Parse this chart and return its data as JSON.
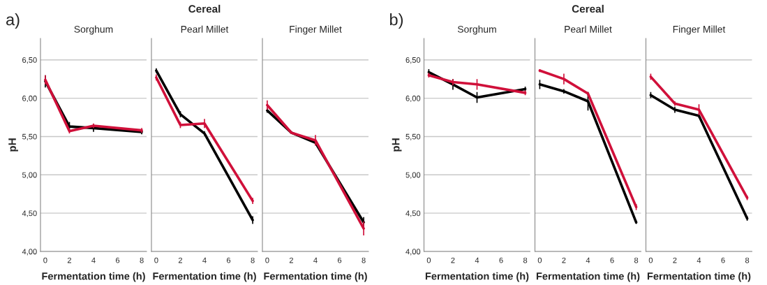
{
  "chart_data": [
    {
      "type": "line",
      "title": "Sorghum",
      "xlabel": "Fermentation time (h)",
      "ylabel": "pH",
      "annotations": [
        "a)",
        "Cereal"
      ],
      "x": [
        0,
        2,
        4,
        8
      ],
      "xlim": [
        -0.4,
        8.4
      ],
      "xticks": [
        0,
        2,
        4,
        6,
        8
      ],
      "ylim": [
        4.0,
        6.78
      ],
      "yticks": [
        {
          "value": 4.0,
          "label": "4,00"
        },
        {
          "value": 4.5,
          "label": "4,50"
        },
        {
          "value": 5.0,
          "label": "5,00"
        },
        {
          "value": 5.5,
          "label": "5,50"
        },
        {
          "value": 6.0,
          "label": "6,00"
        },
        {
          "value": 6.5,
          "label": "6,50"
        }
      ],
      "grid": "y",
      "series": [
        {
          "color": "#000000",
          "values": [
            6.22,
            5.63,
            5.61,
            5.56
          ],
          "errors": [
            0.08,
            0.06,
            0.05,
            0.03
          ]
        },
        {
          "color": "#d0103a",
          "values": [
            6.24,
            5.57,
            5.64,
            5.58
          ],
          "errors": [
            0.06,
            0.03,
            0.03,
            0.03
          ]
        }
      ]
    },
    {
      "type": "line",
      "title": "Pearl Millet",
      "xlabel": "Fermentation time (h)",
      "tick_labels": "x",
      "x": [
        0,
        2,
        4,
        8
      ],
      "xlim": [
        -0.4,
        8.4
      ],
      "xticks": [
        0,
        2,
        4,
        6,
        8
      ],
      "ylim": [
        4.0,
        6.78
      ],
      "yticks": [
        4.0,
        4.5,
        5.0,
        5.5,
        6.0,
        6.5
      ],
      "grid": "y",
      "series": [
        {
          "color": "#000000",
          "values": [
            6.36,
            5.79,
            5.54,
            4.41
          ],
          "errors": [
            0.03,
            0.04,
            0.03,
            0.05
          ]
        },
        {
          "color": "#d0103a",
          "values": [
            6.27,
            5.65,
            5.67,
            4.66
          ],
          "errors": [
            0.04,
            0.04,
            0.06,
            0.04
          ]
        }
      ]
    },
    {
      "type": "line",
      "title": "Finger Millet",
      "xlabel": "Fermentation time (h)",
      "tick_labels": "x",
      "x": [
        0,
        2,
        4,
        8
      ],
      "xlim": [
        -0.4,
        8.4
      ],
      "xticks": [
        0,
        2,
        4,
        6,
        8
      ],
      "ylim": [
        4.0,
        6.78
      ],
      "yticks": [
        4.0,
        4.5,
        5.0,
        5.5,
        6.0,
        6.5
      ],
      "grid": "y",
      "series": [
        {
          "color": "#000000",
          "values": [
            5.84,
            5.55,
            5.42,
            4.38
          ],
          "errors": [
            0.03,
            null,
            0.03,
            0.07
          ]
        },
        {
          "color": "#d0103a",
          "values": [
            5.91,
            5.55,
            5.45,
            4.3
          ],
          "errors": [
            0.06,
            null,
            0.07,
            0.09
          ]
        }
      ]
    },
    {
      "type": "line",
      "title": "Sorghum",
      "xlabel": "Fermentation time (h)",
      "ylabel": "pH",
      "annotations": [
        "b)",
        "Cereal"
      ],
      "x": [
        0,
        2,
        4,
        8
      ],
      "xlim": [
        -0.4,
        8.4
      ],
      "xticks": [
        0,
        2,
        4,
        6,
        8
      ],
      "ylim": [
        4.0,
        6.78
      ],
      "yticks": [
        {
          "value": 4.0,
          "label": "4,00"
        },
        {
          "value": 4.5,
          "label": "4,50"
        },
        {
          "value": 5.0,
          "label": "5,00"
        },
        {
          "value": 5.5,
          "label": "5,50"
        },
        {
          "value": 6.0,
          "label": "6,00"
        },
        {
          "value": 6.5,
          "label": "6,50"
        }
      ],
      "grid": "y",
      "series": [
        {
          "color": "#000000",
          "values": [
            6.34,
            6.18,
            6.01,
            6.12
          ],
          "errors": [
            0.04,
            0.07,
            0.07,
            0.03
          ]
        },
        {
          "color": "#d0103a",
          "values": [
            6.3,
            6.21,
            6.18,
            6.07
          ],
          "errors": [
            0.03,
            0.04,
            0.07,
            0.03
          ]
        }
      ]
    },
    {
      "type": "line",
      "title": "Pearl Millet",
      "xlabel": "Fermentation time (h)",
      "tick_labels": "x",
      "x": [
        0,
        2,
        4,
        8
      ],
      "xlim": [
        -0.4,
        8.4
      ],
      "xticks": [
        0,
        2,
        4,
        6,
        8
      ],
      "ylim": [
        4.0,
        6.78
      ],
      "yticks": [
        4.0,
        4.5,
        5.0,
        5.5,
        6.0,
        6.5
      ],
      "grid": "y",
      "series": [
        {
          "color": "#000000",
          "values": [
            6.18,
            6.09,
            5.96,
            4.38
          ],
          "errors": [
            0.06,
            0.03,
            0.12,
            0.02
          ]
        },
        {
          "color": "#d0103a",
          "values": [
            6.36,
            6.25,
            6.06,
            4.58
          ],
          "errors": [
            0.02,
            0.07,
            0.02,
            0.04
          ]
        }
      ]
    },
    {
      "type": "line",
      "title": "Finger Millet",
      "xlabel": "Fermentation time (h)",
      "tick_labels": "x",
      "x": [
        0,
        2,
        4,
        8
      ],
      "xlim": [
        -0.4,
        8.4
      ],
      "xticks": [
        0,
        2,
        4,
        6,
        8
      ],
      "ylim": [
        4.0,
        6.78
      ],
      "yticks": [
        4.0,
        4.5,
        5.0,
        5.5,
        6.0,
        6.5
      ],
      "grid": "y",
      "series": [
        {
          "color": "#000000",
          "values": [
            6.04,
            5.85,
            5.77,
            4.43
          ],
          "errors": [
            0.04,
            0.04,
            0.03,
            0.03
          ]
        },
        {
          "color": "#d0103a",
          "values": [
            6.28,
            5.93,
            5.85,
            4.7
          ],
          "errors": [
            0.04,
            0.03,
            0.07,
            0.03
          ]
        }
      ]
    }
  ]
}
